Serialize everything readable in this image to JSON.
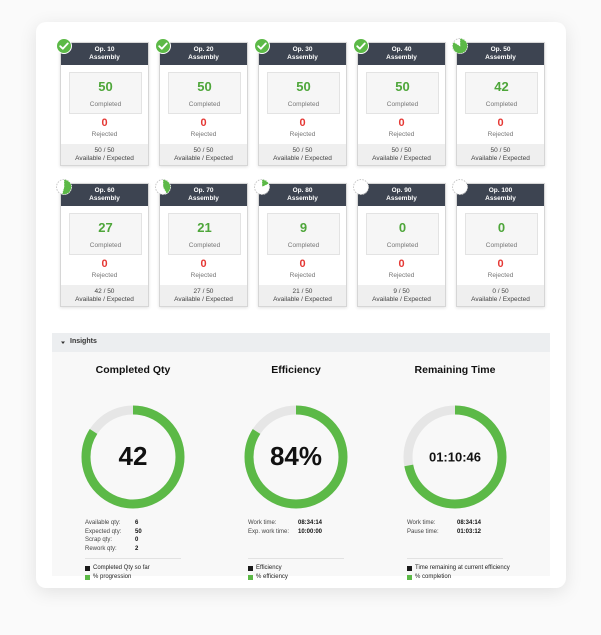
{
  "operations": [
    {
      "name": "Op. 10",
      "subtitle": "Assembly",
      "completed": 50,
      "completed_label": "Completed",
      "rejected": 0,
      "rejected_label": "Rejected",
      "available_expected": "50 / 50",
      "footer_label": "Available / Expected",
      "progress": 100
    },
    {
      "name": "Op. 20",
      "subtitle": "Assembly",
      "completed": 50,
      "completed_label": "Completed",
      "rejected": 0,
      "rejected_label": "Rejected",
      "available_expected": "50 / 50",
      "footer_label": "Available / Expected",
      "progress": 100
    },
    {
      "name": "Op. 30",
      "subtitle": "Assembly",
      "completed": 50,
      "completed_label": "Completed",
      "rejected": 0,
      "rejected_label": "Rejected",
      "available_expected": "50 / 50",
      "footer_label": "Available / Expected",
      "progress": 100
    },
    {
      "name": "Op. 40",
      "subtitle": "Assembly",
      "completed": 50,
      "completed_label": "Completed",
      "rejected": 0,
      "rejected_label": "Rejected",
      "available_expected": "50 / 50",
      "footer_label": "Available / Expected",
      "progress": 100
    },
    {
      "name": "Op. 50",
      "subtitle": "Assembly",
      "completed": 42,
      "completed_label": "Completed",
      "rejected": 0,
      "rejected_label": "Rejected",
      "available_expected": "50 / 50",
      "footer_label": "Available / Expected",
      "progress": 84
    },
    {
      "name": "Op. 60",
      "subtitle": "Assembly",
      "completed": 27,
      "completed_label": "Completed",
      "rejected": 0,
      "rejected_label": "Rejected",
      "available_expected": "42 / 50",
      "footer_label": "Available / Expected",
      "progress": 54
    },
    {
      "name": "Op. 70",
      "subtitle": "Assembly",
      "completed": 21,
      "completed_label": "Completed",
      "rejected": 0,
      "rejected_label": "Rejected",
      "available_expected": "27 / 50",
      "footer_label": "Available / Expected",
      "progress": 42
    },
    {
      "name": "Op. 80",
      "subtitle": "Assembly",
      "completed": 9,
      "completed_label": "Completed",
      "rejected": 0,
      "rejected_label": "Rejected",
      "available_expected": "21 / 50",
      "footer_label": "Available / Expected",
      "progress": 18
    },
    {
      "name": "Op. 90",
      "subtitle": "Assembly",
      "completed": 0,
      "completed_label": "Completed",
      "rejected": 0,
      "rejected_label": "Rejected",
      "available_expected": "9 / 50",
      "footer_label": "Available / Expected",
      "progress": 0
    },
    {
      "name": "Op. 100",
      "subtitle": "Assembly",
      "completed": 0,
      "completed_label": "Completed",
      "rejected": 0,
      "rejected_label": "Rejected",
      "available_expected": "0 / 50",
      "footer_label": "Available / Expected",
      "progress": 0
    }
  ],
  "insights": {
    "title": "Insights",
    "panels": [
      {
        "title": "Completed Qty",
        "center": "42",
        "progress": 84,
        "details": [
          {
            "label": "Available qty:",
            "value": "6"
          },
          {
            "label": "Expected qty:",
            "value": "50"
          },
          {
            "label": "Scrap qty:",
            "value": "0"
          },
          {
            "label": "Rework qty:",
            "value": "2"
          }
        ],
        "legend": [
          {
            "label": "Completed Qty so far",
            "color": "#1a1a1a"
          },
          {
            "label": "% progression",
            "color": "#5cb947"
          }
        ]
      },
      {
        "title": "Efficiency",
        "center": "84%",
        "progress": 84,
        "details": [
          {
            "label": "Work time:",
            "value": "08:34:14"
          },
          {
            "label": "Exp. work time:",
            "value": "10:00:00"
          }
        ],
        "legend": [
          {
            "label": "Efficiency",
            "color": "#1a1a1a"
          },
          {
            "label": "% efficiency",
            "color": "#5cb947"
          }
        ]
      },
      {
        "title": "Remaining Time",
        "center": "01:10:46",
        "progress": 72,
        "details": [
          {
            "label": "Work time:",
            "value": "08:34:14"
          },
          {
            "label": "Pause time:",
            "value": "01:03:12"
          }
        ],
        "legend": [
          {
            "label": "Time remaining at current efficiency",
            "color": "#1a1a1a"
          },
          {
            "label": "% completion",
            "color": "#5cb947"
          }
        ]
      }
    ]
  }
}
